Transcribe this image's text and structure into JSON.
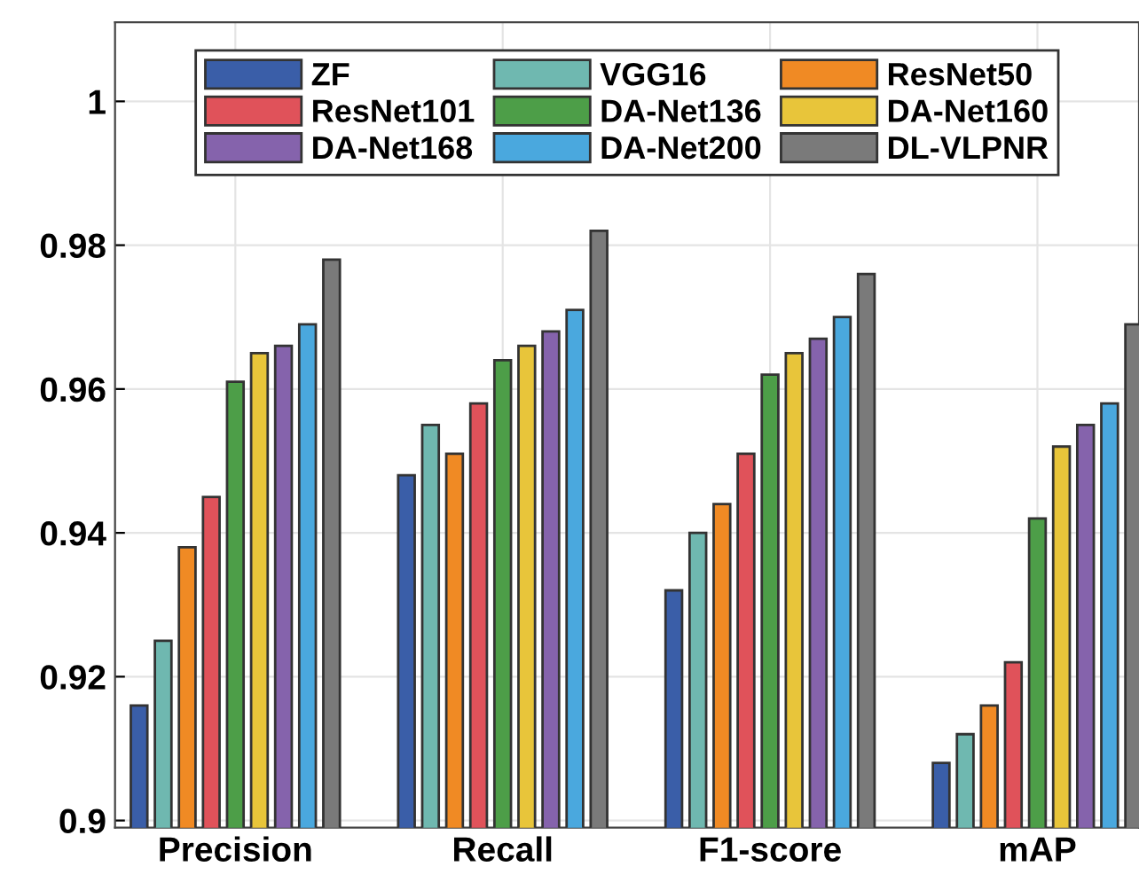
{
  "chart_data": {
    "type": "bar",
    "categories": [
      "Precision",
      "Recall",
      "F1-score",
      "mAP"
    ],
    "series": [
      {
        "name": "ZF",
        "color": "#3a5ea8",
        "values": [
          0.916,
          0.948,
          0.932,
          0.908
        ]
      },
      {
        "name": "VGG16",
        "color": "#6fb8b0",
        "values": [
          0.925,
          0.955,
          0.94,
          0.912
        ]
      },
      {
        "name": "ResNet50",
        "color": "#f08a24",
        "values": [
          0.938,
          0.951,
          0.944,
          0.916
        ]
      },
      {
        "name": "ResNet101",
        "color": "#e0525a",
        "values": [
          0.945,
          0.958,
          0.951,
          0.922
        ]
      },
      {
        "name": "DA-Net136",
        "color": "#4d9e48",
        "values": [
          0.961,
          0.964,
          0.962,
          0.942
        ]
      },
      {
        "name": "DA-Net160",
        "color": "#e8c53a",
        "values": [
          0.965,
          0.966,
          0.965,
          0.952
        ]
      },
      {
        "name": "DA-Net168",
        "color": "#8563ac",
        "values": [
          0.966,
          0.968,
          0.967,
          0.955
        ]
      },
      {
        "name": "DA-Net200",
        "color": "#4aa8de",
        "values": [
          0.969,
          0.971,
          0.97,
          0.958
        ]
      },
      {
        "name": "DL-VLPNR",
        "color": "#7a7a7a",
        "values": [
          0.978,
          0.982,
          0.976,
          0.969
        ]
      }
    ],
    "ylim": [
      0.899,
      1.011
    ],
    "yticks": [
      0.9,
      0.92,
      0.94,
      0.96,
      0.98,
      1
    ],
    "grid": true,
    "legend": "top"
  }
}
